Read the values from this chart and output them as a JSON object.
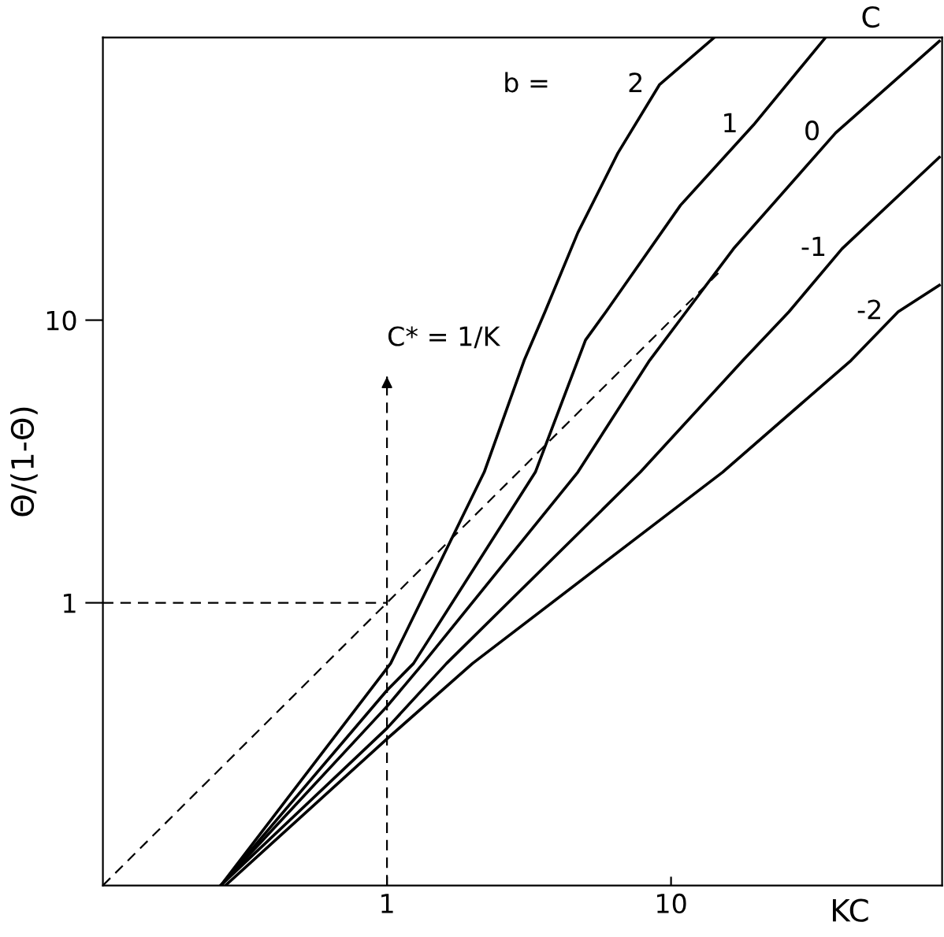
{
  "chart_data": {
    "type": "line",
    "xlabel": "KC",
    "ylabel": "Θ/(1-Θ)",
    "legend_title": "b =",
    "log": "xy",
    "xlim": [
      0.1,
      90
    ],
    "ylim": [
      0.1,
      100
    ],
    "xticks": [
      1,
      10
    ],
    "yticks": [
      1,
      10
    ],
    "grid": false,
    "legend": false,
    "marker": "none",
    "line_style": "solid",
    "series": [
      {
        "name": "2",
        "color": "#000000",
        "x": [
          0.26,
          1.03,
          2.2,
          3.04,
          3.6,
          4.7,
          6.5,
          9.1,
          14.2
        ],
        "values": [
          0.1,
          0.61,
          2.9,
          7.2,
          10.7,
          20.4,
          39,
          68,
          100
        ]
      },
      {
        "name": "1",
        "color": "#000000",
        "x": [
          0.26,
          1,
          1.24,
          3.33,
          5.0,
          5.9,
          10.8,
          19.5,
          35
        ],
        "values": [
          0.1,
          0.49,
          0.61,
          2.9,
          8.5,
          10.7,
          25.5,
          49,
          100
        ]
      },
      {
        "name": "0",
        "color": "#000000",
        "x": [
          0.26,
          1,
          1.34,
          4.7,
          8.4,
          11.3,
          16.6,
          38,
          88
        ],
        "values": [
          0.1,
          0.43,
          0.61,
          2.9,
          7.2,
          10.7,
          17.9,
          46,
          97
        ]
      },
      {
        "name": "-1",
        "color": "#000000",
        "x": [
          0.26,
          1,
          1.62,
          7.8,
          17.9,
          26,
          40,
          88
        ],
        "values": [
          0.1,
          0.36,
          0.61,
          2.9,
          7.2,
          10.7,
          17.9,
          37.7
        ]
      },
      {
        "name": "-2",
        "color": "#000000",
        "x": [
          0.27,
          1,
          2.0,
          15.2,
          43,
          63,
          88
        ],
        "values": [
          0.1,
          0.33,
          0.61,
          2.9,
          7.2,
          10.7,
          13.3
        ]
      },
      {
        "color": "#000000",
        "line_style": "dashed",
        "x": [
          0.1,
          15
        ],
        "values": [
          0.1,
          15
        ]
      },
      {
        "color": "#000000",
        "line_style": "dashed",
        "x": [
          0.1,
          1
        ],
        "values": [
          1,
          1
        ]
      }
    ],
    "ref_lines": [
      {
        "axis": "x",
        "value": 1,
        "label": "C* = 1/K",
        "line_style": "dashed",
        "color": "#000000"
      }
    ],
    "annotations": [
      "C"
    ]
  }
}
